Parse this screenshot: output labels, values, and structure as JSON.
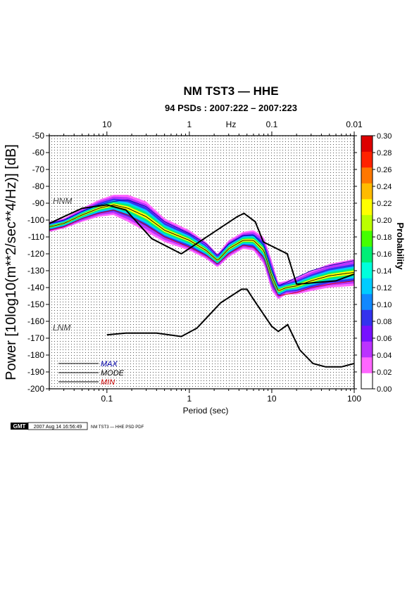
{
  "chart_data": {
    "type": "heatmap",
    "title": "NM TST3 — HHE",
    "subtitle": "94 PSDs : 2007:222 – 2007:223",
    "xlabel": "Period (sec)",
    "x_scale": "log",
    "xlim": [
      0.02,
      100
    ],
    "x_ticks": [
      {
        "value": 0.1,
        "label": "0.1"
      },
      {
        "value": 1,
        "label": "1"
      },
      {
        "value": 10,
        "label": "10"
      },
      {
        "value": 100,
        "label": "100"
      }
    ],
    "top_axis_label": "Hz",
    "top_ticks": [
      {
        "period": 0.1,
        "label": "10"
      },
      {
        "period": 1,
        "label": "1"
      },
      {
        "period": 10,
        "label": "0.1"
      },
      {
        "period": 100,
        "label": "0.01"
      }
    ],
    "ylabel": "Power [10log10(m**2/sec**4/Hz)] [dB]",
    "ylim": [
      -200,
      -50
    ],
    "y_ticks": [
      -50,
      -60,
      -70,
      -80,
      -90,
      -100,
      -110,
      -120,
      -130,
      -140,
      -150,
      -160,
      -170,
      -180,
      -190,
      -200
    ],
    "grid": "dotted",
    "colorbar": {
      "label": "Probability",
      "range": [
        0,
        0.3
      ],
      "ticks": [
        "0.30",
        "0.28",
        "0.26",
        "0.24",
        "0.22",
        "0.20",
        "0.18",
        "0.16",
        "0.14",
        "0.12",
        "0.10",
        "0.08",
        "0.06",
        "0.04",
        "0.02",
        "0.00"
      ],
      "colors": [
        "#ffffff",
        "#ff66ff",
        "#bb33ff",
        "#7711ff",
        "#3333ee",
        "#1188ff",
        "#00ccff",
        "#00ffdd",
        "#00ee77",
        "#44ff00",
        "#bbff00",
        "#ffff00",
        "#ffbb00",
        "#ff7700",
        "#ff2200",
        "#dd0000"
      ]
    },
    "models": [
      {
        "name": "HNM",
        "x": [
          0.02,
          0.03,
          0.05,
          0.1,
          0.17,
          0.35,
          0.8,
          3.8,
          4.6,
          6.3,
          7.9,
          15.4,
          20,
          35,
          60,
          100
        ],
        "y": [
          -102,
          -98,
          -93,
          -91,
          -94,
          -111,
          -120,
          -98,
          -96,
          -101,
          -113,
          -120,
          -138,
          -137,
          -136,
          -132
        ]
      },
      {
        "name": "LNM",
        "x": [
          0.1,
          0.17,
          0.4,
          0.8,
          1.24,
          2.4,
          4.3,
          5,
          6,
          10,
          12,
          15.6,
          21.9,
          31.6,
          45,
          70,
          100
        ],
        "y": [
          -168,
          -167,
          -167,
          -169,
          -164,
          -149,
          -141,
          -141,
          -147,
          -163,
          -166,
          -162,
          -177,
          -185,
          -187,
          -187,
          -185
        ]
      }
    ],
    "series": [
      {
        "name": "MAX",
        "x": [
          0.02,
          0.03,
          0.05,
          0.08,
          0.12,
          0.18,
          0.3,
          0.5,
          1,
          1.6,
          2.2,
          3,
          4.5,
          6,
          8,
          10,
          12,
          15,
          20,
          30,
          50,
          100
        ],
        "y": [
          -102,
          -100,
          -95,
          -91,
          -89,
          -88,
          -92,
          -101,
          -108,
          -114,
          -121,
          -114,
          -109,
          -109,
          -115,
          -130,
          -139,
          -137,
          -134,
          -130,
          -127,
          -124
        ],
        "color": "#0000aa"
      },
      {
        "name": "MODE",
        "x": [
          0.02,
          0.03,
          0.05,
          0.08,
          0.12,
          0.18,
          0.3,
          0.5,
          1,
          1.6,
          2.2,
          3,
          4.5,
          6,
          8,
          10,
          12,
          15,
          20,
          30,
          50,
          100
        ],
        "y": [
          -104,
          -102,
          -97,
          -93,
          -91,
          -93,
          -98,
          -106,
          -112,
          -118,
          -124,
          -117,
          -112,
          -112,
          -118,
          -133,
          -142,
          -140,
          -139,
          -136,
          -133,
          -131
        ],
        "color": "#000000"
      },
      {
        "name": "MIN",
        "x": [
          0.02,
          0.03,
          0.05,
          0.08,
          0.12,
          0.18,
          0.3,
          0.5,
          1,
          1.6,
          2.2,
          3,
          4.5,
          6,
          8,
          10,
          12,
          15,
          20,
          30,
          50,
          100
        ],
        "y": [
          -106,
          -104,
          -99,
          -96,
          -94,
          -97,
          -103,
          -110,
          -116,
          -121,
          -126,
          -120,
          -115,
          -116,
          -122,
          -136,
          -145,
          -144,
          -143,
          -140,
          -138,
          -136
        ],
        "color": "#cc0000"
      }
    ],
    "pdf_band": {
      "x": [
        0.02,
        0.03,
        0.05,
        0.08,
        0.12,
        0.18,
        0.3,
        0.5,
        1,
        1.6,
        2.2,
        3,
        4.5,
        6,
        8,
        10,
        12,
        15,
        20,
        30,
        50,
        100
      ],
      "center": [
        -104,
        -102,
        -97,
        -93,
        -91,
        -93,
        -98,
        -106,
        -112,
        -118,
        -124,
        -117,
        -112,
        -112,
        -118,
        -133,
        -142,
        -140,
        -139,
        -136,
        -133,
        -131
      ],
      "halfwidth": [
        3,
        3,
        4,
        5,
        6,
        8,
        9,
        7,
        6,
        5,
        4,
        5,
        5,
        6,
        8,
        9,
        5,
        4,
        5,
        6,
        7,
        8
      ]
    },
    "legend": [
      "MAX",
      "MODE",
      "MIN"
    ],
    "legend_position": "bottom-left",
    "model_labels": [
      "HNM",
      "LNM"
    ]
  },
  "footer": {
    "logo": "GMT",
    "timestamp": "2007 Aug 14 16:56:49",
    "caption": "NM TST3 — HHE PSD PDF"
  }
}
